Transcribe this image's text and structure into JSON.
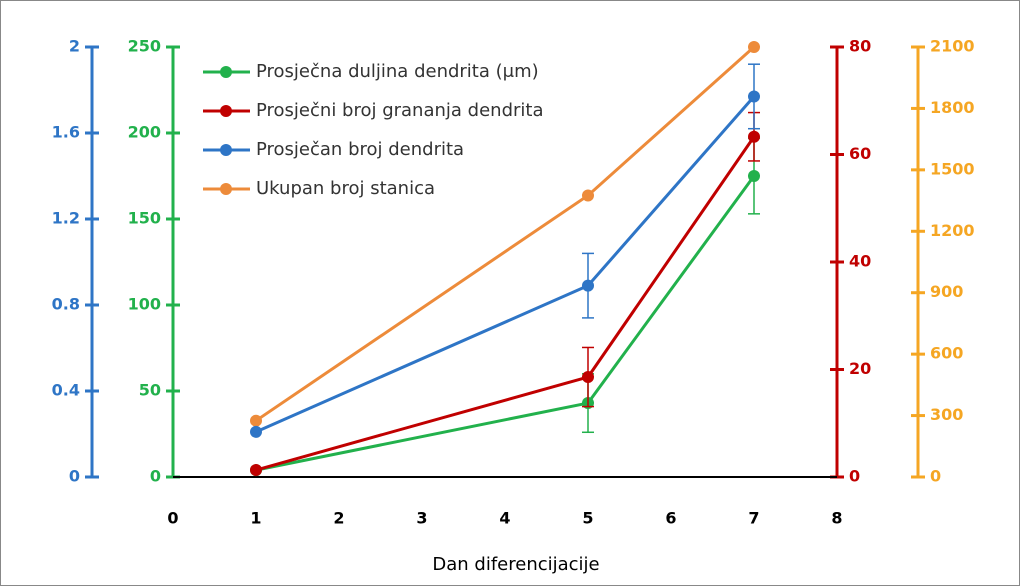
{
  "chart_data": {
    "type": "line",
    "x_label": "Dan diferencijacije",
    "xlim": [
      0,
      8
    ],
    "xticks": [
      0,
      1,
      2,
      3,
      4,
      5,
      6,
      7,
      8
    ],
    "ylim": [
      0,
      250
    ],
    "yticks": [
      0,
      50,
      100,
      150,
      200,
      250
    ],
    "y_color": "#22b14c",
    "y2lim": [
      0,
      80
    ],
    "y2ticks": [
      0,
      20,
      40,
      60,
      80
    ],
    "y2_color": "#c00000",
    "y3lim": [
      0,
      2
    ],
    "y3ticks": [
      0,
      0.4,
      0.8,
      1.2,
      1.6,
      2
    ],
    "y3_color": "#2e75c6",
    "y4lim": [
      0,
      2100
    ],
    "y4ticks": [
      0,
      300,
      600,
      900,
      1200,
      1500,
      1800,
      2100
    ],
    "y4_color": "#f5a623",
    "legend": "upper left",
    "series": [
      {
        "name": "Prosječna duljina dendrita (μm)",
        "color": "#22b14c",
        "axis": "y",
        "x": [
          1,
          5,
          7
        ],
        "values": [
          4,
          43,
          175
        ],
        "errors": [
          null,
          17,
          22
        ]
      },
      {
        "name": "Prosječni broj grananja dendrita",
        "color": "#c00000",
        "axis": "y2",
        "x": [
          1,
          5,
          7
        ],
        "values": [
          1.3,
          18.6,
          63.3
        ],
        "errors": [
          null,
          5.5,
          4.5
        ]
      },
      {
        "name": "Prosječan broj dendrita",
        "color": "#2e75c6",
        "axis": "y3",
        "x": [
          1,
          5,
          7
        ],
        "values": [
          0.21,
          0.89,
          1.77
        ],
        "errors": [
          null,
          0.15,
          0.15
        ]
      },
      {
        "name": "Ukupan broj stanica",
        "color": "#ed8b3a",
        "axis": "y4",
        "x": [
          1,
          5,
          7
        ],
        "values": [
          275,
          1375,
          2100
        ],
        "errors": [
          null,
          null,
          null
        ]
      }
    ]
  }
}
